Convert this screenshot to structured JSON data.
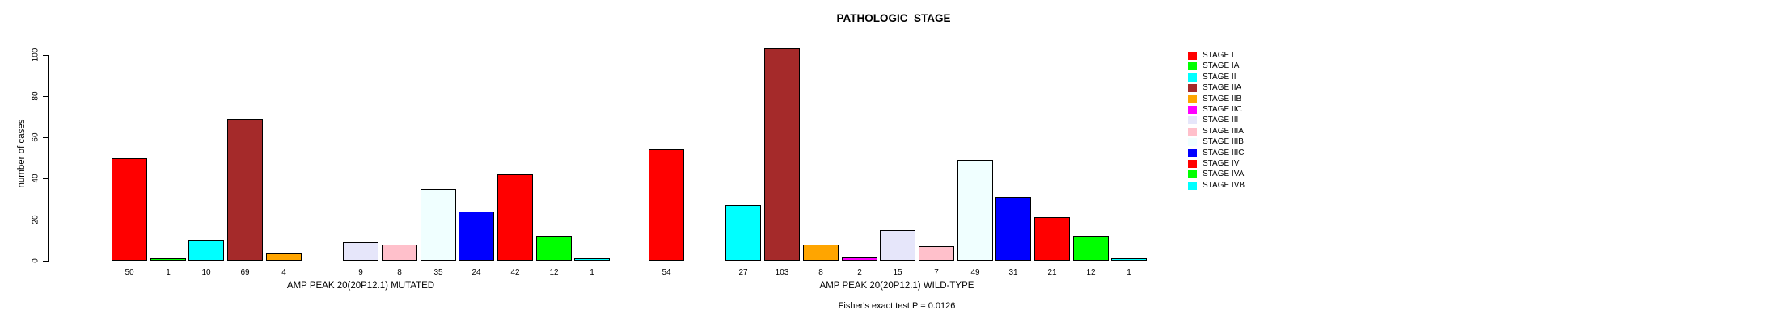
{
  "chart_data": {
    "type": "bar",
    "title": "PATHOLOGIC_STAGE",
    "ylabel": "number of cases",
    "ylim": [
      0,
      100
    ],
    "yticks": [
      0,
      20,
      40,
      60,
      80,
      100
    ],
    "grid": false,
    "legend_position": "right",
    "categories": [
      "STAGE I",
      "STAGE IA",
      "STAGE II",
      "STAGE IIA",
      "STAGE IIB",
      "STAGE IIC",
      "STAGE III",
      "STAGE IIIA",
      "STAGE IIIB",
      "STAGE IIIC",
      "STAGE IV",
      "STAGE IVA",
      "STAGE IVB"
    ],
    "palette": [
      "#FF0000",
      "#00FF00",
      "#00FFFF",
      "#A52A2A",
      "#FFA500",
      "#FF00FF",
      "#E6E6FA",
      "#FFC0CB",
      "#F0FFFF",
      "#0000FF",
      "#FF0000",
      "#00FF00",
      "#00FFFF"
    ],
    "groups": [
      {
        "xlabel": "AMP PEAK 20(20P12.1) MUTATED",
        "values": [
          50,
          1,
          10,
          69,
          4,
          0,
          9,
          8,
          35,
          24,
          42,
          12,
          1
        ]
      },
      {
        "xlabel": "AMP PEAK 20(20P12.1) WILD-TYPE",
        "values": [
          54,
          0,
          27,
          103,
          8,
          2,
          15,
          7,
          49,
          31,
          21,
          12,
          1
        ]
      }
    ],
    "annotation": "Fisher's exact test P = 0.0126"
  },
  "colors": {
    "background": "#FFFFFF",
    "axis": "#000000",
    "bar_border": "#000000",
    "text": "#000000"
  }
}
